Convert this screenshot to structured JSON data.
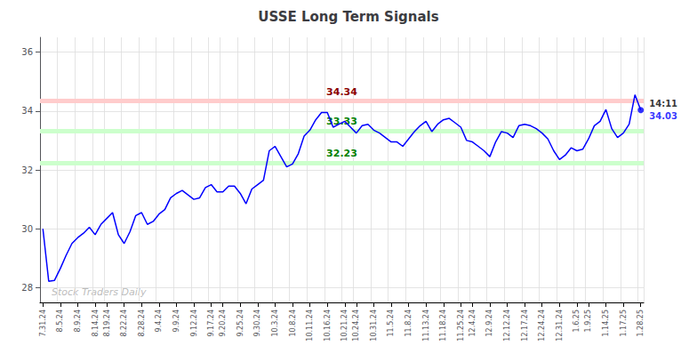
{
  "chart_data": {
    "type": "line",
    "title": "USSE Long Term Signals",
    "color": "blue",
    "grid": true,
    "ylim": [
      27.5,
      36.5
    ],
    "yticks": [
      28,
      30,
      32,
      34,
      36
    ],
    "categories": [
      "7.31.24",
      null,
      null,
      "8.5.24",
      null,
      null,
      "8.9.24",
      null,
      null,
      "8.14.24",
      null,
      "8.19.24",
      null,
      null,
      "8.22.24",
      null,
      null,
      "8.28.24",
      null,
      null,
      "9.4.24",
      null,
      null,
      "9.9.24",
      null,
      null,
      "9.12.24",
      null,
      null,
      "9.17.24",
      null,
      "9.20.24",
      null,
      null,
      "9.25.24",
      null,
      null,
      "9.30.24",
      null,
      null,
      "10.3.24",
      null,
      null,
      "10.8.24",
      null,
      null,
      "10.11.24",
      null,
      null,
      "10.16.24",
      null,
      null,
      "10.21.24",
      null,
      "10.24.24",
      null,
      null,
      "10.31.24",
      null,
      null,
      "11.5.24",
      null,
      null,
      "11.8.24",
      null,
      null,
      "11.13.24",
      null,
      null,
      "11.18.24",
      null,
      null,
      "11.25.24",
      null,
      "12.4.24",
      null,
      null,
      "12.9.24",
      null,
      null,
      "12.12.24",
      null,
      null,
      "12.17.24",
      null,
      null,
      "12.24.24",
      null,
      null,
      "12.31.24",
      null,
      null,
      "1.6.25",
      null,
      "1.9.25",
      null,
      null,
      "1.14.25",
      null,
      null,
      "1.17.25",
      null,
      null,
      "1.28.25"
    ],
    "values": [
      30.0,
      28.22,
      28.25,
      28.65,
      29.1,
      29.5,
      29.7,
      29.85,
      30.05,
      29.8,
      30.15,
      30.35,
      30.55,
      29.8,
      29.5,
      29.9,
      30.45,
      30.55,
      30.15,
      30.25,
      30.5,
      30.65,
      31.05,
      31.2,
      31.3,
      31.15,
      31.0,
      31.05,
      31.4,
      31.5,
      31.25,
      31.25,
      31.45,
      31.45,
      31.2,
      30.85,
      31.35,
      31.5,
      31.65,
      32.65,
      32.8,
      32.45,
      32.1,
      32.2,
      32.55,
      33.15,
      33.35,
      33.7,
      33.95,
      33.95,
      33.45,
      33.55,
      33.65,
      33.45,
      33.25,
      33.5,
      33.55,
      33.35,
      33.25,
      33.1,
      32.95,
      32.95,
      32.8,
      33.05,
      33.3,
      33.5,
      33.65,
      33.3,
      33.55,
      33.7,
      33.75,
      33.6,
      33.45,
      33.0,
      32.95,
      32.8,
      32.65,
      32.45,
      32.95,
      33.3,
      33.25,
      33.1,
      33.5,
      33.55,
      33.5,
      33.4,
      33.25,
      33.05,
      32.65,
      32.35,
      32.5,
      32.75,
      32.65,
      32.7,
      33.05,
      33.5,
      33.65,
      34.05,
      33.4,
      33.1,
      33.25,
      33.55,
      34.55,
      34.03
    ],
    "hlines": [
      {
        "value": 34.34,
        "label": "34.34",
        "color": "#ffcccc",
        "label_color": "darkred"
      },
      {
        "value": 33.33,
        "label": "33.33",
        "color": "#ccffcc",
        "label_color": "green"
      },
      {
        "value": 32.23,
        "label": "32.23",
        "color": "#ccffcc",
        "label_color": "green"
      }
    ],
    "last_point": {
      "label": "14:11",
      "value": 34.03,
      "value_label": "34.03",
      "color": "blue"
    },
    "watermark": "Stock Traders Daily"
  }
}
